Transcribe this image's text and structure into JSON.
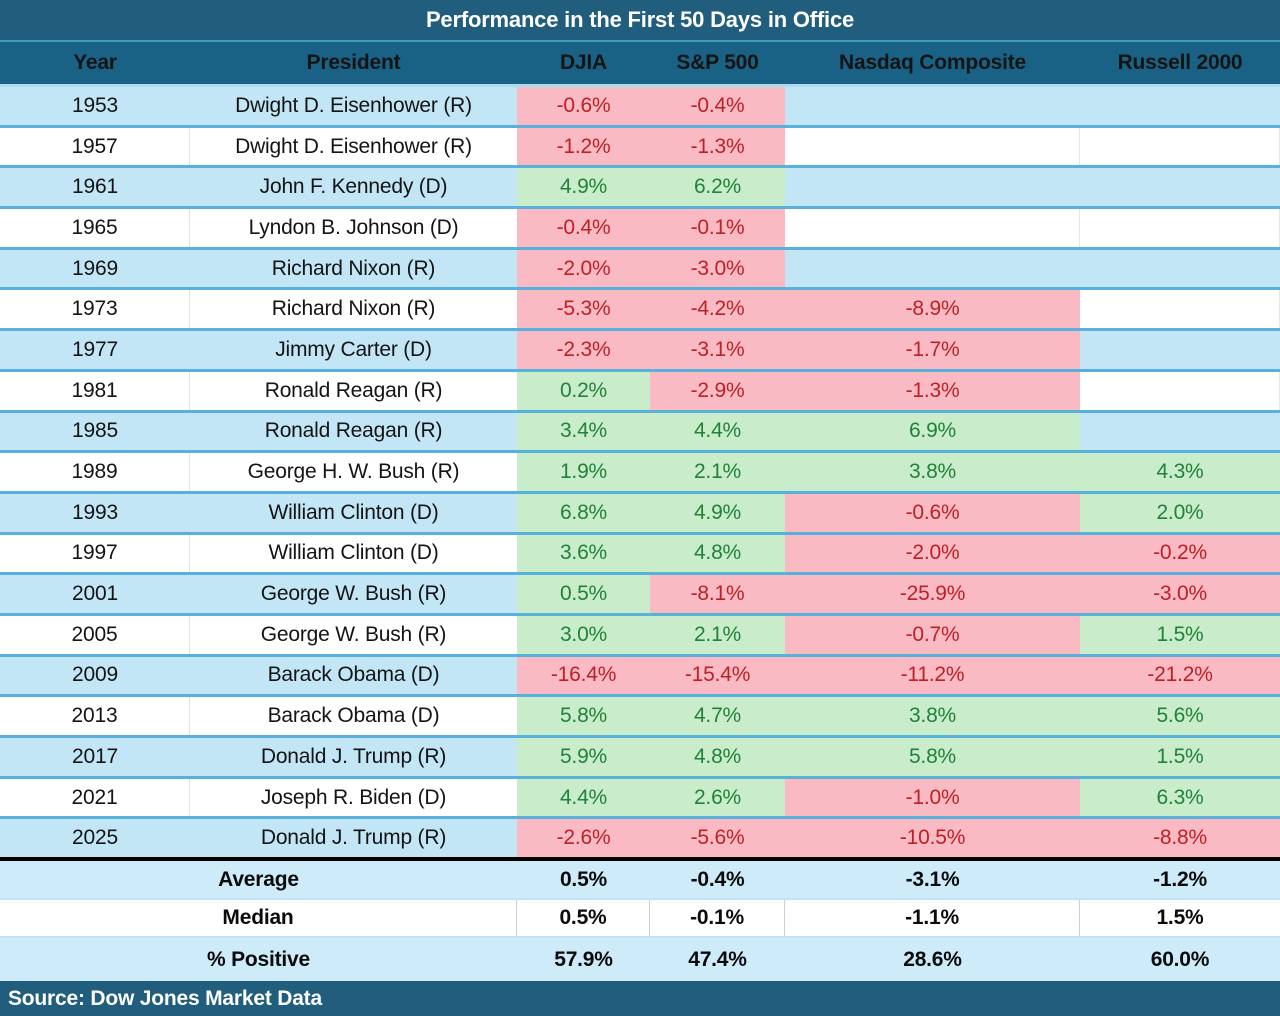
{
  "title": "Performance in the First 50 Days in Office",
  "source": "Source: Dow Jones Market Data",
  "columns": [
    "Year",
    "President",
    "DJIA",
    "S&P 500",
    "Nasdaq Composite",
    "Russell 2000"
  ],
  "rows": [
    {
      "year": "1953",
      "president": "Dwight D. Eisenhower (R)",
      "values": [
        {
          "v": "-0.6%",
          "s": "neg"
        },
        {
          "v": "-0.4%",
          "s": "neg"
        },
        {
          "v": "",
          "s": "blank"
        },
        {
          "v": "",
          "s": "blank"
        }
      ]
    },
    {
      "year": "1957",
      "president": "Dwight D. Eisenhower (R)",
      "values": [
        {
          "v": "-1.2%",
          "s": "neg"
        },
        {
          "v": "-1.3%",
          "s": "neg"
        },
        {
          "v": "",
          "s": "blank"
        },
        {
          "v": "",
          "s": "blank"
        }
      ]
    },
    {
      "year": "1961",
      "president": "John F. Kennedy (D)",
      "values": [
        {
          "v": "4.9%",
          "s": "pos"
        },
        {
          "v": "6.2%",
          "s": "pos"
        },
        {
          "v": "",
          "s": "blank"
        },
        {
          "v": "",
          "s": "blank"
        }
      ]
    },
    {
      "year": "1965",
      "president": "Lyndon B. Johnson (D)",
      "values": [
        {
          "v": "-0.4%",
          "s": "neg"
        },
        {
          "v": "-0.1%",
          "s": "neg"
        },
        {
          "v": "",
          "s": "blank"
        },
        {
          "v": "",
          "s": "blank"
        }
      ]
    },
    {
      "year": "1969",
      "president": "Richard Nixon (R)",
      "values": [
        {
          "v": "-2.0%",
          "s": "neg"
        },
        {
          "v": "-3.0%",
          "s": "neg"
        },
        {
          "v": "",
          "s": "blank"
        },
        {
          "v": "",
          "s": "blank"
        }
      ]
    },
    {
      "year": "1973",
      "president": "Richard Nixon (R)",
      "values": [
        {
          "v": "-5.3%",
          "s": "neg"
        },
        {
          "v": "-4.2%",
          "s": "neg"
        },
        {
          "v": "-8.9%",
          "s": "neg"
        },
        {
          "v": "",
          "s": "blank"
        }
      ]
    },
    {
      "year": "1977",
      "president": "Jimmy Carter (D)",
      "values": [
        {
          "v": "-2.3%",
          "s": "neg"
        },
        {
          "v": "-3.1%",
          "s": "neg"
        },
        {
          "v": "-1.7%",
          "s": "neg"
        },
        {
          "v": "",
          "s": "blank"
        }
      ]
    },
    {
      "year": "1981",
      "president": "Ronald Reagan (R)",
      "values": [
        {
          "v": "0.2%",
          "s": "pos"
        },
        {
          "v": "-2.9%",
          "s": "neg"
        },
        {
          "v": "-1.3%",
          "s": "neg"
        },
        {
          "v": "",
          "s": "blank"
        }
      ]
    },
    {
      "year": "1985",
      "president": "Ronald Reagan (R)",
      "values": [
        {
          "v": "3.4%",
          "s": "pos"
        },
        {
          "v": "4.4%",
          "s": "pos"
        },
        {
          "v": "6.9%",
          "s": "pos"
        },
        {
          "v": "",
          "s": "blank"
        }
      ]
    },
    {
      "year": "1989",
      "president": "George H. W. Bush (R)",
      "values": [
        {
          "v": "1.9%",
          "s": "pos"
        },
        {
          "v": "2.1%",
          "s": "pos"
        },
        {
          "v": "3.8%",
          "s": "pos"
        },
        {
          "v": "4.3%",
          "s": "pos"
        }
      ]
    },
    {
      "year": "1993",
      "president": "William Clinton (D)",
      "values": [
        {
          "v": "6.8%",
          "s": "pos"
        },
        {
          "v": "4.9%",
          "s": "pos"
        },
        {
          "v": "-0.6%",
          "s": "neg"
        },
        {
          "v": "2.0%",
          "s": "pos"
        }
      ]
    },
    {
      "year": "1997",
      "president": "William Clinton (D)",
      "values": [
        {
          "v": "3.6%",
          "s": "pos"
        },
        {
          "v": "4.8%",
          "s": "pos"
        },
        {
          "v": "-2.0%",
          "s": "neg"
        },
        {
          "v": "-0.2%",
          "s": "neg"
        }
      ]
    },
    {
      "year": "2001",
      "president": "George W. Bush (R)",
      "values": [
        {
          "v": "0.5%",
          "s": "pos"
        },
        {
          "v": "-8.1%",
          "s": "neg"
        },
        {
          "v": "-25.9%",
          "s": "neg"
        },
        {
          "v": "-3.0%",
          "s": "neg"
        }
      ]
    },
    {
      "year": "2005",
      "president": "George W. Bush (R)",
      "values": [
        {
          "v": "3.0%",
          "s": "pos"
        },
        {
          "v": "2.1%",
          "s": "pos"
        },
        {
          "v": "-0.7%",
          "s": "neg"
        },
        {
          "v": "1.5%",
          "s": "pos"
        }
      ]
    },
    {
      "year": "2009",
      "president": "Barack Obama (D)",
      "values": [
        {
          "v": "-16.4%",
          "s": "neg"
        },
        {
          "v": "-15.4%",
          "s": "neg"
        },
        {
          "v": "-11.2%",
          "s": "neg"
        },
        {
          "v": "-21.2%",
          "s": "neg"
        }
      ]
    },
    {
      "year": "2013",
      "president": "Barack Obama (D)",
      "values": [
        {
          "v": "5.8%",
          "s": "pos"
        },
        {
          "v": "4.7%",
          "s": "pos"
        },
        {
          "v": "3.8%",
          "s": "pos"
        },
        {
          "v": "5.6%",
          "s": "pos"
        }
      ]
    },
    {
      "year": "2017",
      "president": "Donald J. Trump (R)",
      "values": [
        {
          "v": "5.9%",
          "s": "pos"
        },
        {
          "v": "4.8%",
          "s": "pos"
        },
        {
          "v": "5.8%",
          "s": "pos"
        },
        {
          "v": "1.5%",
          "s": "pos"
        }
      ]
    },
    {
      "year": "2021",
      "president": "Joseph R. Biden (D)",
      "values": [
        {
          "v": "4.4%",
          "s": "pos"
        },
        {
          "v": "2.6%",
          "s": "pos"
        },
        {
          "v": "-1.0%",
          "s": "neg"
        },
        {
          "v": "6.3%",
          "s": "pos"
        }
      ]
    },
    {
      "year": "2025",
      "president": "Donald J. Trump (R)",
      "values": [
        {
          "v": "-2.6%",
          "s": "neg"
        },
        {
          "v": "-5.6%",
          "s": "neg"
        },
        {
          "v": "-10.5%",
          "s": "neg"
        },
        {
          "v": "-8.8%",
          "s": "neg"
        }
      ]
    }
  ],
  "summary": {
    "rows": [
      {
        "label": "Average",
        "values": [
          "0.5%",
          "-0.4%",
          "-3.1%",
          "-1.2%"
        ]
      },
      {
        "label": "Median",
        "values": [
          "0.5%",
          "-0.1%",
          "-1.1%",
          "1.5%"
        ]
      },
      {
        "label": "% Positive",
        "values": [
          "57.9%",
          "47.4%",
          "28.6%",
          "60.0%"
        ]
      }
    ]
  },
  "colors": {
    "header_bg": "#1a6285",
    "title_bg": "#215d7c",
    "row_blue": "#c3e6f6",
    "row_white": "#ffffff",
    "positive_bg": "#c9ecca",
    "negative_bg": "#f9bac3",
    "positive_text": "#218239",
    "negative_text": "#bf2026",
    "row_border": "#58b1da"
  },
  "chart_data": {
    "type": "table",
    "title": "Performance in the First 50 Days in Office",
    "columns": [
      "Year",
      "President",
      "DJIA",
      "S&P 500",
      "Nasdaq Composite",
      "Russell 2000"
    ],
    "rows": [
      [
        1953,
        "Dwight D. Eisenhower (R)",
        -0.6,
        -0.4,
        null,
        null
      ],
      [
        1957,
        "Dwight D. Eisenhower (R)",
        -1.2,
        -1.3,
        null,
        null
      ],
      [
        1961,
        "John F. Kennedy (D)",
        4.9,
        6.2,
        null,
        null
      ],
      [
        1965,
        "Lyndon B. Johnson (D)",
        -0.4,
        -0.1,
        null,
        null
      ],
      [
        1969,
        "Richard Nixon (R)",
        -2.0,
        -3.0,
        null,
        null
      ],
      [
        1973,
        "Richard Nixon (R)",
        -5.3,
        -4.2,
        -8.9,
        null
      ],
      [
        1977,
        "Jimmy Carter (D)",
        -2.3,
        -3.1,
        -1.7,
        null
      ],
      [
        1981,
        "Ronald Reagan (R)",
        0.2,
        -2.9,
        -1.3,
        null
      ],
      [
        1985,
        "Ronald Reagan (R)",
        3.4,
        4.4,
        6.9,
        null
      ],
      [
        1989,
        "George H. W. Bush (R)",
        1.9,
        2.1,
        3.8,
        4.3
      ],
      [
        1993,
        "William Clinton (D)",
        6.8,
        4.9,
        -0.6,
        2.0
      ],
      [
        1997,
        "William Clinton (D)",
        3.6,
        4.8,
        -2.0,
        -0.2
      ],
      [
        2001,
        "George W. Bush (R)",
        0.5,
        -8.1,
        -25.9,
        -3.0
      ],
      [
        2005,
        "George W. Bush (R)",
        3.0,
        2.1,
        -0.7,
        1.5
      ],
      [
        2009,
        "Barack Obama (D)",
        -16.4,
        -15.4,
        -11.2,
        -21.2
      ],
      [
        2013,
        "Barack Obama (D)",
        5.8,
        4.7,
        3.8,
        5.6
      ],
      [
        2017,
        "Donald J. Trump (R)",
        5.9,
        4.8,
        5.8,
        1.5
      ],
      [
        2021,
        "Joseph R. Biden (D)",
        4.4,
        2.6,
        -1.0,
        6.3
      ],
      [
        2025,
        "Donald J. Trump (R)",
        -2.6,
        -5.6,
        -10.5,
        -8.8
      ]
    ],
    "summary": {
      "Average": [
        0.5,
        -0.4,
        -3.1,
        -1.2
      ],
      "Median": [
        0.5,
        -0.1,
        -1.1,
        1.5
      ],
      "% Positive": [
        57.9,
        47.4,
        28.6,
        60.0
      ]
    },
    "values_unit": "%",
    "source": "Source: Dow Jones Market Data"
  }
}
